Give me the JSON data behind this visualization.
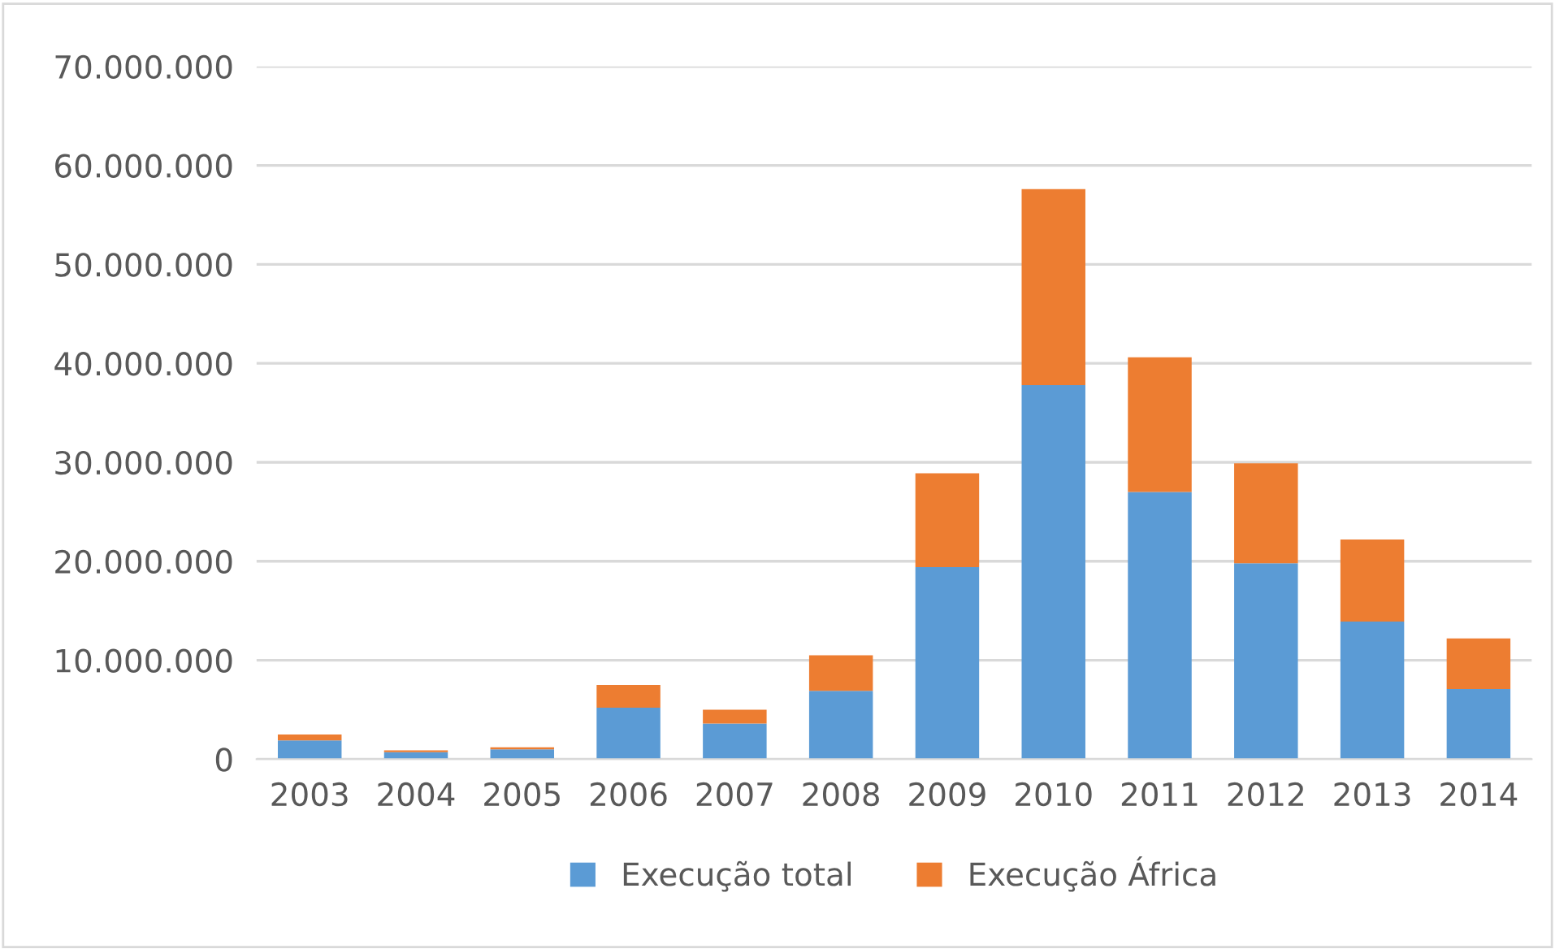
{
  "chart_data": {
    "type": "bar",
    "stacked": true,
    "categories": [
      "2003",
      "2004",
      "2005",
      "2006",
      "2007",
      "2008",
      "2009",
      "2010",
      "2011",
      "2012",
      "2013",
      "2014"
    ],
    "series": [
      {
        "name": "Execução total",
        "color": "#5b9bd5",
        "values": [
          1900000,
          700000,
          1000000,
          5200000,
          3600000,
          6900000,
          19400000,
          37800000,
          27000000,
          19800000,
          13900000,
          7100000
        ]
      },
      {
        "name": "Execução África",
        "color": "#ed7d31",
        "values": [
          600000,
          200000,
          200000,
          2300000,
          1400000,
          3600000,
          9500000,
          19800000,
          13600000,
          10100000,
          8300000,
          5100000
        ]
      }
    ],
    "ylim": [
      0,
      70000000
    ],
    "yticks": [
      0,
      {
        "value": 10000000,
        "label": "10.000.000"
      },
      {
        "value": 20000000,
        "label": "20.000.000"
      },
      {
        "value": 30000000,
        "label": "30.000.000"
      },
      {
        "value": 40000000,
        "label": "40.000.000"
      },
      {
        "value": 50000000,
        "label": "50.000.000"
      },
      {
        "value": 60000000,
        "label": "60.000.000"
      },
      {
        "value": 70000000,
        "label": "70.000.000"
      }
    ],
    "grid": "y",
    "legend": "bottom"
  }
}
